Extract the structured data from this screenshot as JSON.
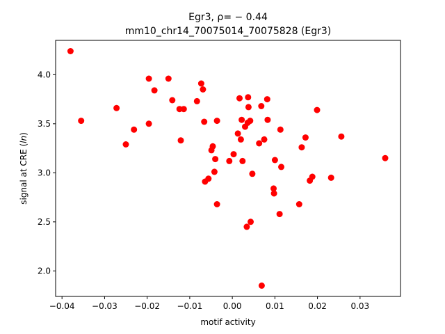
{
  "chart_data": {
    "type": "scatter",
    "title_line1": "Egr3, ρ= − 0.44",
    "title_line2": "mm10_chr14_70075014_70075828 (Egr3)",
    "xlabel": "motif activity",
    "ylabel": "signal at CRE (ln)",
    "ylabel_pre": "signal at CRE (",
    "ylabel_italic": "ln",
    "ylabel_post": ")",
    "xlim": [
      -0.0415,
      0.0395
    ],
    "ylim": [
      1.74,
      4.35
    ],
    "xticks": [
      -0.04,
      -0.03,
      -0.02,
      -0.01,
      0.0,
      0.01,
      0.02,
      0.03
    ],
    "xtick_labels": [
      "−0.04",
      "−0.03",
      "−0.02",
      "−0.01",
      "0.00",
      "0.01",
      "0.02",
      "0.03"
    ],
    "yticks": [
      2.0,
      2.5,
      3.0,
      3.5,
      4.0
    ],
    "ytick_labels": [
      "2.0",
      "2.5",
      "3.0",
      "3.5",
      "4.0"
    ],
    "grid": false,
    "marker_color": "#ff0000",
    "points": [
      {
        "x": -0.038,
        "y": 4.24
      },
      {
        "x": -0.0355,
        "y": 3.53
      },
      {
        "x": -0.0272,
        "y": 3.66
      },
      {
        "x": -0.025,
        "y": 3.29
      },
      {
        "x": -0.0231,
        "y": 3.44
      },
      {
        "x": -0.0196,
        "y": 3.96
      },
      {
        "x": -0.0196,
        "y": 3.5
      },
      {
        "x": -0.0183,
        "y": 3.84
      },
      {
        "x": -0.015,
        "y": 3.96
      },
      {
        "x": -0.0141,
        "y": 3.74
      },
      {
        "x": -0.0124,
        "y": 3.65
      },
      {
        "x": -0.0121,
        "y": 3.33
      },
      {
        "x": -0.0114,
        "y": 3.65
      },
      {
        "x": -0.0083,
        "y": 3.73
      },
      {
        "x": -0.0073,
        "y": 3.91
      },
      {
        "x": -0.0069,
        "y": 3.85
      },
      {
        "x": -0.0066,
        "y": 3.52
      },
      {
        "x": -0.0064,
        "y": 2.91
      },
      {
        "x": -0.0056,
        "y": 2.94
      },
      {
        "x": -0.0049,
        "y": 3.23
      },
      {
        "x": -0.0046,
        "y": 3.27
      },
      {
        "x": -0.0042,
        "y": 3.01
      },
      {
        "x": -0.004,
        "y": 3.14
      },
      {
        "x": -0.0036,
        "y": 3.53
      },
      {
        "x": -0.0036,
        "y": 2.68
      },
      {
        "x": -0.0007,
        "y": 3.12
      },
      {
        "x": 0.0003,
        "y": 3.19
      },
      {
        "x": 0.0013,
        "y": 3.4
      },
      {
        "x": 0.0017,
        "y": 3.76
      },
      {
        "x": 0.002,
        "y": 3.34
      },
      {
        "x": 0.0022,
        "y": 3.54
      },
      {
        "x": 0.0024,
        "y": 3.12
      },
      {
        "x": 0.003,
        "y": 3.47
      },
      {
        "x": 0.0034,
        "y": 2.45
      },
      {
        "x": 0.0037,
        "y": 3.77
      },
      {
        "x": 0.0038,
        "y": 3.67
      },
      {
        "x": 0.0036,
        "y": 3.51
      },
      {
        "x": 0.0042,
        "y": 3.53
      },
      {
        "x": 0.0043,
        "y": 2.5
      },
      {
        "x": 0.0047,
        "y": 2.99
      },
      {
        "x": 0.0063,
        "y": 3.3
      },
      {
        "x": 0.0068,
        "y": 3.68
      },
      {
        "x": 0.0069,
        "y": 1.85
      },
      {
        "x": 0.0075,
        "y": 3.34
      },
      {
        "x": 0.0082,
        "y": 3.75
      },
      {
        "x": 0.0083,
        "y": 3.54
      },
      {
        "x": 0.0097,
        "y": 2.84
      },
      {
        "x": 0.0098,
        "y": 2.79
      },
      {
        "x": 0.01,
        "y": 3.13
      },
      {
        "x": 0.0111,
        "y": 2.58
      },
      {
        "x": 0.0113,
        "y": 3.44
      },
      {
        "x": 0.0115,
        "y": 3.06
      },
      {
        "x": 0.0157,
        "y": 2.68
      },
      {
        "x": 0.0163,
        "y": 3.26
      },
      {
        "x": 0.0172,
        "y": 3.36
      },
      {
        "x": 0.0182,
        "y": 2.92
      },
      {
        "x": 0.0188,
        "y": 2.96
      },
      {
        "x": 0.0199,
        "y": 3.64
      },
      {
        "x": 0.0232,
        "y": 2.95
      },
      {
        "x": 0.0256,
        "y": 3.37
      },
      {
        "x": 0.0359,
        "y": 3.15
      }
    ]
  }
}
